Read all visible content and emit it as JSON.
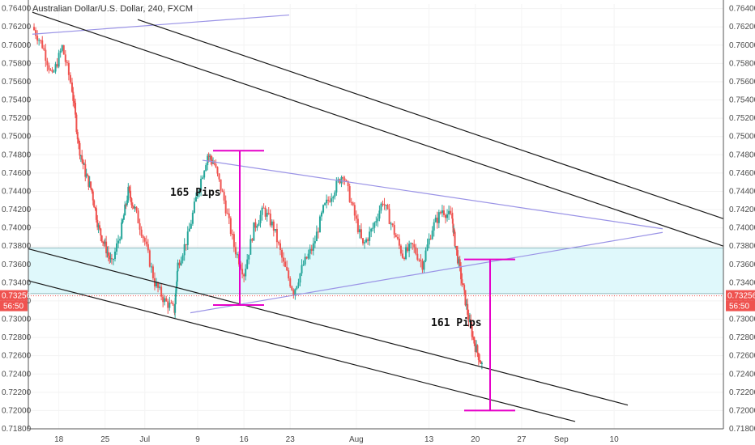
{
  "chart_data": {
    "type": "candlestick",
    "title": "Australian Dollar/U.S. Dollar, 240, FXCM",
    "y_range": [
      0.718,
      0.7645
    ],
    "x_range": [
      -3,
      67
    ],
    "y_ticks": [
      "0.76400",
      "0.76200",
      "0.76000",
      "0.75800",
      "0.75600",
      "0.75400",
      "0.75200",
      "0.75000",
      "0.74800",
      "0.74600",
      "0.74400",
      "0.74200",
      "0.74000",
      "0.73800",
      "0.73600",
      "0.73400",
      "0.73200",
      "0.73000",
      "0.72800",
      "0.72600",
      "0.72400",
      "0.72200",
      "0.72000",
      "0.71800"
    ],
    "x_ticks": [
      {
        "day": 4,
        "label": "18"
      },
      {
        "day": 11,
        "label": "25"
      },
      {
        "day": 17,
        "label": "Jul"
      },
      {
        "day": 25,
        "label": "9"
      },
      {
        "day": 32,
        "label": "16"
      },
      {
        "day": 39,
        "label": "23"
      },
      {
        "day": 49,
        "label": "Aug"
      },
      {
        "day": 60,
        "label": "13"
      },
      {
        "day": 67,
        "label": "20"
      },
      {
        "day": 74,
        "label": "27"
      },
      {
        "day": 80,
        "label": "Sep"
      },
      {
        "day": 88,
        "label": "10"
      }
    ],
    "series": [
      {
        "name": "AUDUSD",
        "path": [
          [
            0,
            0.762
          ],
          [
            1.5,
            0.76
          ],
          [
            3,
            0.7565
          ],
          [
            4.5,
            0.7598
          ],
          [
            6,
            0.7552
          ],
          [
            7,
            0.749
          ],
          [
            8,
            0.746
          ],
          [
            9,
            0.744
          ],
          [
            10,
            0.74
          ],
          [
            11,
            0.738
          ],
          [
            12,
            0.736
          ],
          [
            13.5,
            0.74
          ],
          [
            14.5,
            0.744
          ],
          [
            15.5,
            0.742
          ],
          [
            17,
            0.7385
          ],
          [
            18.5,
            0.734
          ],
          [
            20,
            0.732
          ],
          [
            21.5,
            0.731
          ],
          [
            22,
            0.736
          ],
          [
            23.5,
            0.739
          ],
          [
            25,
            0.744
          ],
          [
            26.5,
            0.748
          ],
          [
            27.5,
            0.747
          ],
          [
            29,
            0.743
          ],
          [
            30.5,
            0.738
          ],
          [
            32,
            0.735
          ],
          [
            33.5,
            0.74
          ],
          [
            35,
            0.742
          ],
          [
            36.5,
            0.74
          ],
          [
            38,
            0.736
          ],
          [
            39.5,
            0.733
          ],
          [
            41,
            0.736
          ],
          [
            42.5,
            0.738
          ],
          [
            44,
            0.742
          ],
          [
            45.5,
            0.744
          ],
          [
            47,
            0.746
          ],
          [
            48.5,
            0.742
          ],
          [
            50,
            0.738
          ],
          [
            51.5,
            0.74
          ],
          [
            53,
            0.743
          ],
          [
            54.5,
            0.74
          ],
          [
            56,
            0.737
          ],
          [
            57.5,
            0.738
          ],
          [
            59,
            0.736
          ],
          [
            60.5,
            0.74
          ],
          [
            62,
            0.742
          ],
          [
            63.5,
            0.741
          ],
          [
            64,
            0.738
          ],
          [
            65,
            0.734
          ],
          [
            66,
            0.73
          ],
          [
            67,
            0.727
          ],
          [
            68,
            0.725
          ]
        ]
      }
    ],
    "current_price": "0.73256",
    "countdown": "56:50",
    "annotations": [
      {
        "text": "165 Pips"
      },
      {
        "text": "161 Pips"
      }
    ]
  },
  "colors": {
    "up": "#26a69a",
    "down": "#ef5350",
    "channel": "#1a1a1a",
    "triangle": "#9a93e6",
    "measure": "#e600c8",
    "zone_fill": "#dff8fb",
    "zone_border": "#8fb7bb",
    "price_badge": "#ef5350"
  }
}
